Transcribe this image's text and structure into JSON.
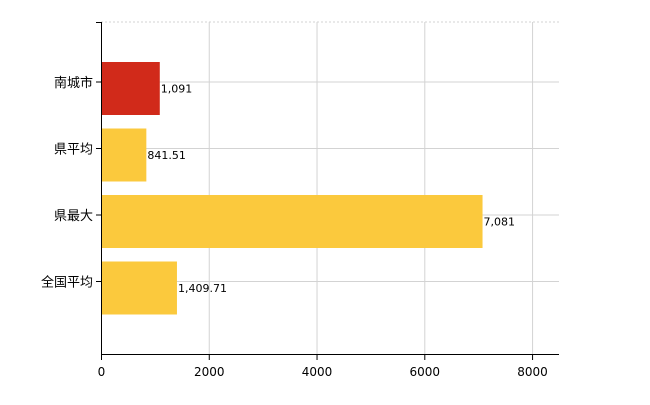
{
  "chart_data": {
    "type": "bar",
    "orientation": "horizontal",
    "categories": [
      "南城市",
      "県平均",
      "県最大",
      "全国平均"
    ],
    "values": [
      1091,
      841.51,
      7081,
      1409.71
    ],
    "value_labels": [
      "1,091",
      "841.51",
      "7,081",
      "1,409.71"
    ],
    "bar_colors": [
      "#d12a1a",
      "#fbc93d",
      "#fbc93d",
      "#fbc93d"
    ],
    "xlim": [
      0,
      8500
    ],
    "x_ticks": [
      0,
      2000,
      4000,
      6000,
      8000
    ],
    "x_tick_labels": [
      "0",
      "2000",
      "4000",
      "6000",
      "8000"
    ],
    "grid": true
  }
}
